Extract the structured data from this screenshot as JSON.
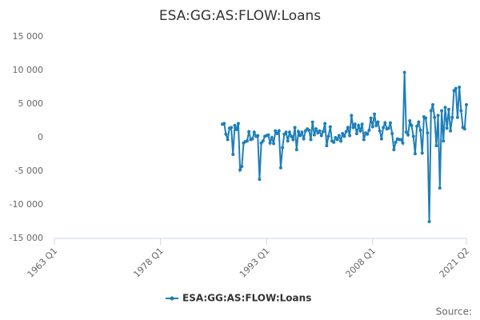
{
  "chart_data": {
    "type": "line",
    "title": "ESA:GG:AS:FLOW:Loans",
    "credit": "Source:",
    "x": [
      "1986 Q4",
      "1987 Q1",
      "1987 Q2",
      "1987 Q3",
      "1987 Q4",
      "1988 Q1",
      "1988 Q2",
      "1988 Q3",
      "1988 Q4",
      "1989 Q1",
      "1989 Q2",
      "1989 Q3",
      "1989 Q4",
      "1990 Q1",
      "1990 Q2",
      "1990 Q3",
      "1990 Q4",
      "1991 Q1",
      "1991 Q2",
      "1991 Q3",
      "1991 Q4",
      "1992 Q1",
      "1992 Q2",
      "1992 Q3",
      "1992 Q4",
      "1993 Q1",
      "1993 Q2",
      "1993 Q3",
      "1993 Q4",
      "1994 Q1",
      "1994 Q2",
      "1994 Q3",
      "1994 Q4",
      "1995 Q1",
      "1995 Q2",
      "1995 Q3",
      "1995 Q4",
      "1996 Q1",
      "1996 Q2",
      "1996 Q3",
      "1996 Q4",
      "1997 Q1",
      "1997 Q2",
      "1997 Q3",
      "1997 Q4",
      "1998 Q1",
      "1998 Q2",
      "1998 Q3",
      "1998 Q4",
      "1999 Q1",
      "1999 Q2",
      "1999 Q3",
      "1999 Q4",
      "2000 Q1",
      "2000 Q2",
      "2000 Q3",
      "2000 Q4",
      "2001 Q1",
      "2001 Q2",
      "2001 Q3",
      "2001 Q4",
      "2002 Q1",
      "2002 Q2",
      "2002 Q3",
      "2002 Q4",
      "2003 Q1",
      "2003 Q2",
      "2003 Q3",
      "2003 Q4",
      "2004 Q1",
      "2004 Q2",
      "2004 Q3",
      "2004 Q4",
      "2005 Q1",
      "2005 Q2",
      "2005 Q3",
      "2005 Q4",
      "2006 Q1",
      "2006 Q2",
      "2006 Q3",
      "2006 Q4",
      "2007 Q1",
      "2007 Q2",
      "2007 Q3",
      "2007 Q4",
      "2008 Q1",
      "2008 Q2",
      "2008 Q3",
      "2008 Q4",
      "2009 Q1",
      "2009 Q2",
      "2009 Q3",
      "2009 Q4",
      "2010 Q1",
      "2010 Q2",
      "2010 Q3",
      "2010 Q4",
      "2011 Q1",
      "2011 Q2",
      "2011 Q3",
      "2011 Q4",
      "2012 Q1",
      "2012 Q2",
      "2012 Q3",
      "2012 Q4",
      "2013 Q1",
      "2013 Q2",
      "2013 Q3",
      "2013 Q4",
      "2014 Q1",
      "2014 Q2",
      "2014 Q3",
      "2014 Q4",
      "2015 Q1",
      "2015 Q2",
      "2015 Q3",
      "2015 Q4",
      "2016 Q1",
      "2016 Q2",
      "2016 Q3",
      "2016 Q4",
      "2017 Q1",
      "2017 Q2",
      "2017 Q3",
      "2017 Q4",
      "2018 Q1",
      "2018 Q2",
      "2018 Q3",
      "2018 Q4",
      "2019 Q1",
      "2019 Q2",
      "2019 Q3",
      "2019 Q4",
      "2020 Q1",
      "2020 Q2",
      "2020 Q3",
      "2020 Q4",
      "2021 Q1",
      "2021 Q2"
    ],
    "series": [
      {
        "name": "ESA:GG:AS:FLOW:Loans",
        "color": "#1f7fb8",
        "values": [
          2000,
          2100,
          500,
          -300,
          1400,
          1500,
          -2500,
          1800,
          1200,
          2100,
          -4800,
          -4300,
          -800,
          -600,
          -500,
          900,
          -300,
          -200,
          800,
          200,
          300,
          -6200,
          -800,
          -500,
          200,
          300,
          400,
          -800,
          0,
          -900,
          1000,
          600,
          1000,
          -4500,
          -1500,
          500,
          800,
          -500,
          800,
          200,
          -300,
          1500,
          -1800,
          900,
          300,
          800,
          -200,
          1000,
          1300,
          1100,
          -300,
          2300,
          400,
          1300,
          700,
          1000,
          300,
          900,
          2100,
          -1200,
          200,
          1600,
          -500,
          -700,
          0,
          -300,
          300,
          -500,
          600,
          200,
          900,
          1500,
          300,
          3300,
          1500,
          2000,
          600,
          1800,
          1000,
          2000,
          -300,
          700,
          500,
          1100,
          2900,
          1600,
          3500,
          1800,
          2300,
          1000,
          -200,
          1500,
          2200,
          1300,
          1400,
          2200,
          600,
          -1800,
          -700,
          -200,
          -300,
          -300,
          -800,
          9700,
          800,
          400,
          2500,
          1800,
          200,
          -2400,
          1700,
          2300,
          1100,
          -2300,
          3100,
          2900,
          700,
          -12500,
          4000,
          4900,
          3000,
          -1200,
          3300,
          -7500,
          4000,
          -500,
          4500,
          1400,
          4200,
          1000,
          3000,
          7000,
          7300,
          3000,
          7500,
          4000,
          1500,
          1300,
          4900
        ]
      }
    ],
    "xlim": [
      "1963 Q1",
      "2021 Q2"
    ],
    "xticks": [
      "1963 Q1",
      "1978 Q1",
      "1993 Q1",
      "2008 Q1",
      "2021 Q2"
    ],
    "ylim": [
      -15000,
      15000
    ],
    "yticks": [
      {
        "value": -15000,
        "label": "-15 000"
      },
      {
        "value": -10000,
        "label": "-10 000"
      },
      {
        "value": -5000,
        "label": "-5 000"
      },
      0,
      {
        "value": 5000,
        "label": "5 000"
      },
      {
        "value": 10000,
        "label": "10 000"
      },
      {
        "value": 15000,
        "label": "15 000"
      }
    ],
    "grid": false,
    "legend": "bottom"
  }
}
